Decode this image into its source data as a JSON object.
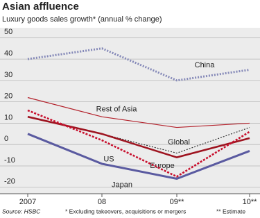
{
  "chart_data": {
    "type": "line",
    "title": "Asian affluence",
    "subtitle": "Luxury goods sales growth* (annual % change)",
    "categories": [
      "2007",
      "08",
      "09**",
      "10**"
    ],
    "series": [
      {
        "name": "China",
        "color": "#8589b8",
        "style": "dotted",
        "values": [
          40,
          45,
          30,
          35
        ]
      },
      {
        "name": "Rest of Asia",
        "color": "#b3202a",
        "style": "thin",
        "values": [
          22,
          13,
          8,
          10
        ]
      },
      {
        "name": "Global",
        "color": "#333333",
        "style": "dotted",
        "values": [
          13,
          5,
          -4,
          8
        ]
      },
      {
        "name": "Europe",
        "color": "#9e1420",
        "style": "thick",
        "values": [
          13,
          5,
          -6,
          3
        ]
      },
      {
        "name": "US",
        "color": "#c8102e",
        "style": "thick-dotted",
        "values": [
          16,
          2,
          -15,
          6
        ]
      },
      {
        "name": "Japan",
        "color": "#5a5aa0",
        "style": "double",
        "values": [
          5,
          -9,
          -16,
          -3
        ]
      }
    ],
    "ylim": [
      -23,
      54
    ],
    "yticks": [
      -20,
      -10,
      0,
      10,
      20,
      30,
      40,
      50
    ],
    "grid": true,
    "source": "Source: HSBC",
    "footnote_1": "* Excluding takeovers, acquisitions or mergers",
    "footnote_2": "** Estimate"
  }
}
